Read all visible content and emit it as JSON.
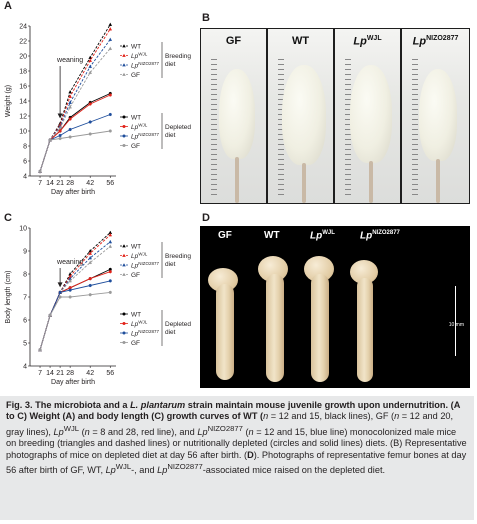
{
  "panels": {
    "a": "A",
    "b": "B",
    "c": "C",
    "d": "D"
  },
  "colors": {
    "wt": "#000000",
    "wjl": "#e2231a",
    "nizo": "#1f4e9c",
    "gf": "#9a9a9a"
  },
  "legend": {
    "breeding_diet": "Breeding\ndiet",
    "depleted_diet": "Depleted\ndiet",
    "wt": "WT",
    "lp": "Lp",
    "wjl_sup": "WJL",
    "nizo_sup": "NIZO2877",
    "gf": "GF"
  },
  "chart_data": [
    {
      "panel": "A",
      "type": "line",
      "ylabel": "Weight (g)",
      "xlabel": "Day after birth",
      "x": [
        7,
        14,
        21,
        28,
        42,
        56
      ],
      "x_tick_labels": [
        "7",
        "14",
        "21",
        "28",
        "42",
        "56"
      ],
      "xlim": [
        0,
        60
      ],
      "ylim": [
        4,
        24
      ],
      "y_ticks": [
        4,
        6,
        8,
        10,
        12,
        14,
        16,
        18,
        20,
        22,
        24
      ],
      "annotation": "weaning",
      "series": [
        {
          "diet": "breeding",
          "group": "WT",
          "marker": "triangle",
          "dash": true,
          "values": [
            4.6,
            8.8,
            11.0,
            15.2,
            19.8,
            24.2
          ]
        },
        {
          "diet": "breeding",
          "group": "WJL",
          "marker": "triangle",
          "dash": true,
          "values": [
            4.6,
            8.8,
            10.8,
            14.6,
            19.4,
            23.6
          ]
        },
        {
          "diet": "breeding",
          "group": "NIZO2877",
          "marker": "triangle",
          "dash": true,
          "values": [
            4.6,
            8.8,
            10.6,
            13.8,
            18.6,
            22.2
          ]
        },
        {
          "diet": "breeding",
          "group": "GF",
          "marker": "triangle",
          "dash": true,
          "values": [
            4.6,
            8.8,
            10.4,
            13.2,
            17.8,
            21.0
          ]
        },
        {
          "diet": "depleted",
          "group": "WT",
          "marker": "circle",
          "dash": false,
          "values": [
            4.6,
            8.8,
            10.0,
            11.8,
            13.8,
            15.0
          ]
        },
        {
          "diet": "depleted",
          "group": "WJL",
          "marker": "circle",
          "dash": false,
          "values": [
            4.6,
            8.8,
            10.0,
            11.6,
            13.6,
            14.8
          ]
        },
        {
          "diet": "depleted",
          "group": "NIZO2877",
          "marker": "circle",
          "dash": false,
          "values": [
            4.6,
            8.8,
            9.4,
            10.2,
            11.2,
            12.2
          ]
        },
        {
          "diet": "depleted",
          "group": "GF",
          "marker": "circle",
          "dash": false,
          "values": [
            4.6,
            8.8,
            9.0,
            9.2,
            9.6,
            10.0
          ]
        }
      ]
    },
    {
      "panel": "C",
      "type": "line",
      "ylabel": "Body length (cm)",
      "xlabel": "Day after birth",
      "x": [
        7,
        14,
        21,
        28,
        42,
        56
      ],
      "x_tick_labels": [
        "7",
        "14",
        "21",
        "28",
        "42",
        "56"
      ],
      "xlim": [
        0,
        60
      ],
      "ylim": [
        4,
        10
      ],
      "y_ticks": [
        4,
        5,
        6,
        7,
        8,
        9,
        10
      ],
      "annotation": "weaning",
      "series": [
        {
          "diet": "breeding",
          "group": "WT",
          "marker": "triangle",
          "dash": true,
          "values": [
            4.7,
            6.2,
            7.2,
            8.0,
            9.0,
            9.8
          ]
        },
        {
          "diet": "breeding",
          "group": "WJL",
          "marker": "triangle",
          "dash": true,
          "values": [
            4.7,
            6.2,
            7.2,
            7.9,
            8.9,
            9.7
          ]
        },
        {
          "diet": "breeding",
          "group": "NIZO2877",
          "marker": "triangle",
          "dash": true,
          "values": [
            4.7,
            6.2,
            7.2,
            7.8,
            8.7,
            9.4
          ]
        },
        {
          "diet": "breeding",
          "group": "GF",
          "marker": "triangle",
          "dash": true,
          "values": [
            4.7,
            6.2,
            7.2,
            7.7,
            8.5,
            9.2
          ]
        },
        {
          "diet": "depleted",
          "group": "WT",
          "marker": "circle",
          "dash": false,
          "values": [
            4.7,
            6.2,
            7.2,
            7.4,
            7.8,
            8.2
          ]
        },
        {
          "diet": "depleted",
          "group": "WJL",
          "marker": "circle",
          "dash": false,
          "values": [
            4.7,
            6.2,
            7.2,
            7.4,
            7.8,
            8.1
          ]
        },
        {
          "diet": "depleted",
          "group": "NIZO2877",
          "marker": "circle",
          "dash": false,
          "values": [
            4.7,
            6.2,
            7.2,
            7.3,
            7.5,
            7.7
          ]
        },
        {
          "diet": "depleted",
          "group": "GF",
          "marker": "circle",
          "dash": false,
          "values": [
            4.7,
            6.2,
            7.0,
            7.0,
            7.1,
            7.2
          ]
        }
      ]
    }
  ],
  "photo_b": {
    "labels": [
      {
        "text": "GF",
        "sup": ""
      },
      {
        "text": "WT",
        "sup": ""
      },
      {
        "text": "Lp",
        "sup": "WJL"
      },
      {
        "text": "Lp",
        "sup": "NIZO2877"
      }
    ]
  },
  "photo_d": {
    "labels": [
      {
        "text": "GF",
        "sup": ""
      },
      {
        "text": "WT",
        "sup": ""
      },
      {
        "text": "Lp",
        "sup": "WJL"
      },
      {
        "text": "Lp",
        "sup": "NIZO2877"
      }
    ],
    "scale": "10 mm"
  },
  "caption": {
    "title_pre": "Fig. 3. The microbiota and a ",
    "title_species": "L. plantarum",
    "title_post": " strain maintain mouse juvenile growth upon undernutrition.",
    "p1": "(A to C) Weight (A) and body length (C) growth curves of WT (",
    "n": "n",
    "p2": " = 12 and 15, black lines), GF (",
    "p3": " = 12 and 20, gray lines), ",
    "lp": "Lp",
    "wjl": "WJL",
    "p4": " (",
    "p5": " = 8 and 28, red line), and ",
    "nizo": "NIZO2877",
    "p6": " (",
    "p7": " = 12 and 15, blue line) monocolonized male mice on breeding (triangles and dashed lines) or nutritionally depleted (circles and solid lines) diets. (B) Representative photographs of mice on depleted diet at day 56 after birth. (",
    "d_bold": "D",
    "p8": "). Photographs of representative femur bones at day 56 after birth of GF, WT, ",
    "p9": "-, and ",
    "p10": "-associated mice raised on the depleted diet."
  }
}
